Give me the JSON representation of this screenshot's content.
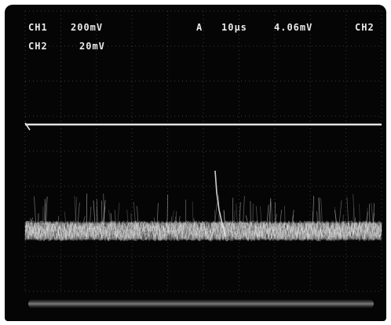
{
  "readout": {
    "ch1_label": "CH1",
    "ch1_scale": "200mV",
    "ch2_label": "CH2",
    "ch2_scale": "20mV",
    "trigger_mode": "A",
    "timebase": "10µs",
    "trigger_level": "4.06mV",
    "trigger_source": "CH2"
  },
  "colors": {
    "screen_background": "#050505",
    "trace": "#e4e4e4",
    "graticule": "#3a3a3a",
    "readout_text": "#e9e9e9"
  }
}
